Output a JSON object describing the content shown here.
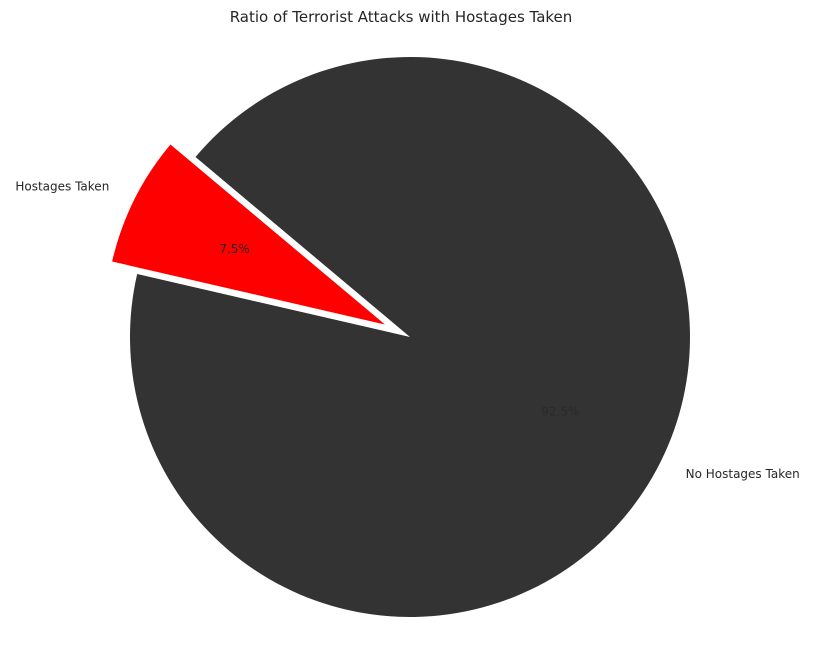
{
  "chart_data": {
    "type": "pie",
    "title": "Ratio of Terrorist Attacks with Hostages Taken",
    "slices": [
      {
        "name": "Hostages Taken",
        "value": 7.5,
        "pct_label": "7.5%",
        "color": "#ff0000",
        "pct_color": "#262626",
        "exploded": true
      },
      {
        "name": "No Hostages Taken",
        "value": 92.5,
        "pct_label": "92.5%",
        "color": "#333333",
        "pct_color": "#2a2a2a",
        "exploded": false
      }
    ],
    "start_angle_deg": 140,
    "legend": "none"
  }
}
